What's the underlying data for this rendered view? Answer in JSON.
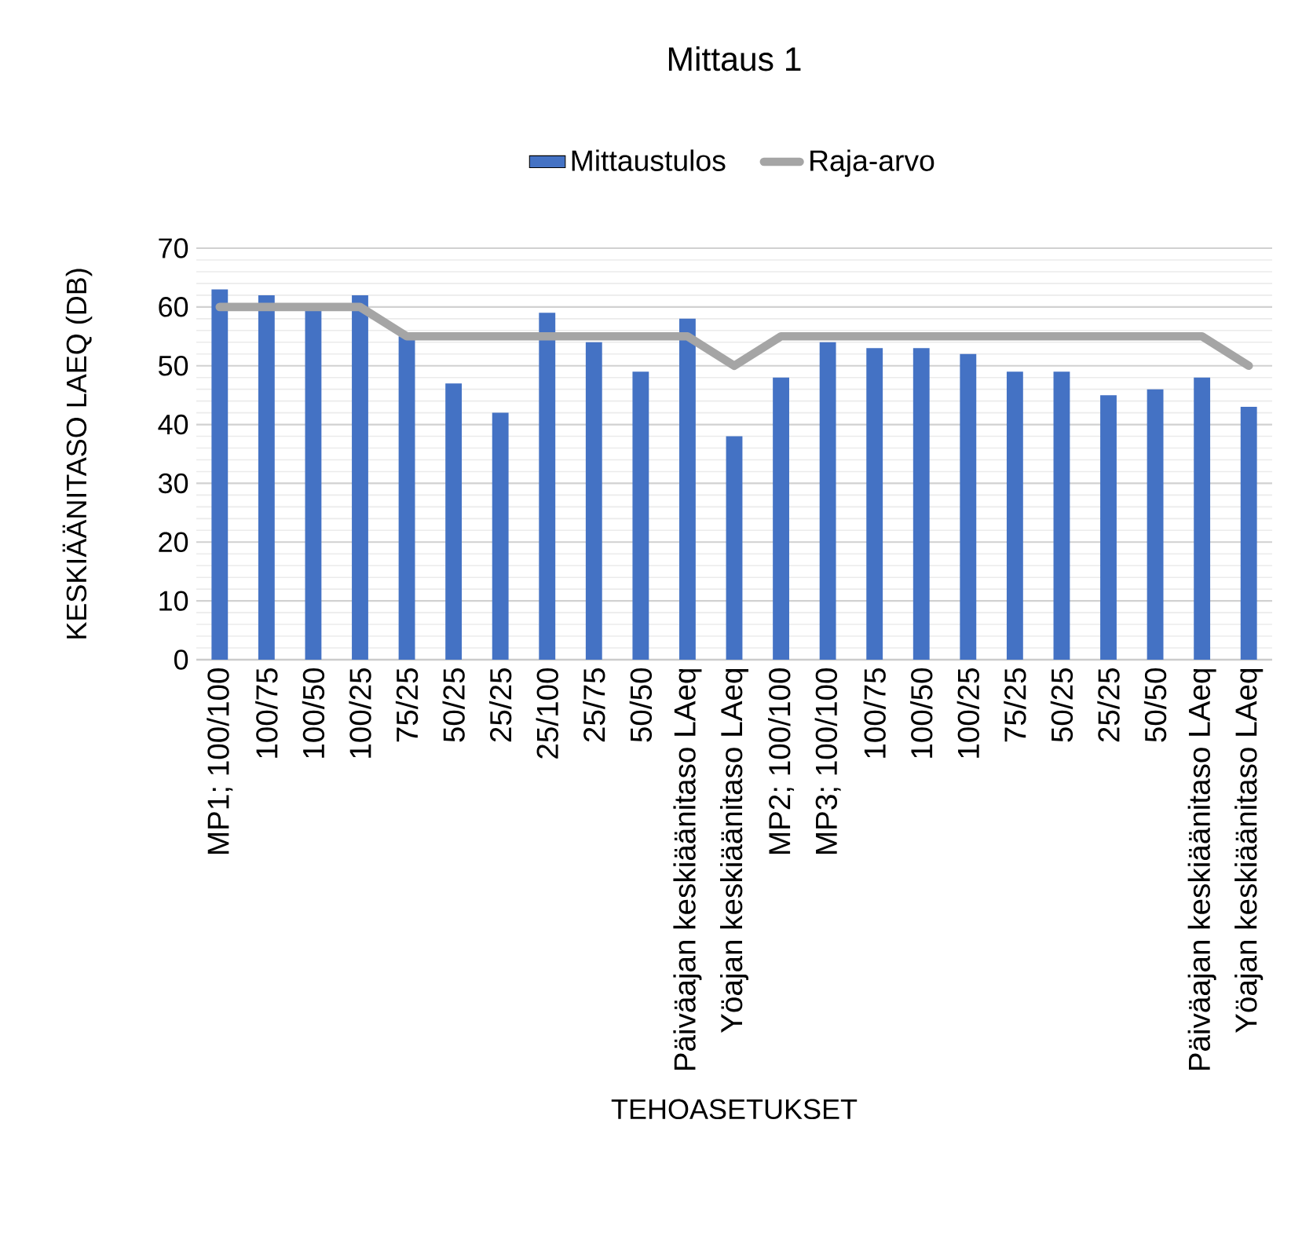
{
  "chart_data": {
    "type": "bar",
    "title": "Mittaus 1",
    "xlabel": "TEHOASETUKSET",
    "ylabel": "KESKIÄÄNITASO LAEQ (DB)",
    "categories": [
      "MP1; 100/100",
      "100/75",
      "100/50",
      "100/25",
      "75/25",
      "50/25",
      "25/25",
      "25/100",
      "25/75",
      "50/50",
      "Päiväajan keskiäänitaso LAeq",
      "Yöajan keskiäänitaso LAeq",
      "MP2; 100/100",
      "MP3; 100/100",
      "100/75",
      "100/50",
      "100/25",
      "75/25",
      "50/25",
      "25/25",
      "50/50",
      "Päiväajan keskiäänitaso LAeq",
      "Yöajan keskiäänitaso LAeq"
    ],
    "series": [
      {
        "name": "Mittaustulos",
        "type": "bar",
        "color": "#4472c4",
        "values": [
          63,
          62,
          60,
          62,
          55,
          47,
          42,
          59,
          54,
          49,
          58,
          38,
          48,
          54,
          53,
          53,
          52,
          49,
          49,
          45,
          46,
          48,
          43
        ]
      },
      {
        "name": "Raja-arvo",
        "type": "line",
        "color": "#a5a5a5",
        "values": [
          60,
          60,
          60,
          60,
          55,
          55,
          55,
          55,
          55,
          55,
          55,
          50,
          55,
          55,
          55,
          55,
          55,
          55,
          55,
          55,
          55,
          55,
          50
        ]
      }
    ],
    "ylim": [
      0,
      70
    ],
    "yticks": [
      0,
      10,
      20,
      30,
      40,
      50,
      60,
      70
    ],
    "grid": "y",
    "legend": "top"
  }
}
